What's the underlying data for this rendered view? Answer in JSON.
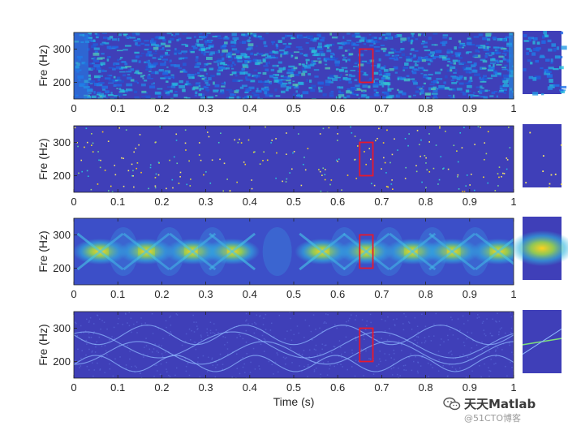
{
  "chart_data": [
    {
      "type": "heatmap",
      "variant": "noisy-spectrogram",
      "xlim": [
        0,
        1
      ],
      "ylim": [
        150,
        350
      ],
      "xticks": [
        "0",
        "0.1",
        "0.2",
        "0.3",
        "0.4",
        "0.5",
        "0.6",
        "0.7",
        "0.8",
        "0.9",
        "1"
      ],
      "yticks": [
        "200",
        "300"
      ],
      "ylabel": "Fre (Hz)",
      "highlight": {
        "x": [
          0.65,
          0.68
        ],
        "y": [
          200,
          300
        ],
        "color": "#e8192c"
      }
    },
    {
      "type": "heatmap",
      "variant": "sparse-points",
      "xlim": [
        0,
        1
      ],
      "ylim": [
        150,
        350
      ],
      "xticks": [
        "0",
        "0.1",
        "0.2",
        "0.3",
        "0.4",
        "0.5",
        "0.6",
        "0.7",
        "0.8",
        "0.9",
        "1"
      ],
      "yticks": [
        "200",
        "300"
      ],
      "ylabel": "Fre (Hz)",
      "highlight": {
        "x": [
          0.65,
          0.68
        ],
        "y": [
          200,
          300
        ],
        "color": "#e8192c"
      }
    },
    {
      "type": "heatmap",
      "variant": "crossing-chirps",
      "xlim": [
        0,
        1
      ],
      "ylim": [
        150,
        350
      ],
      "xticks": [
        "0",
        "0.1",
        "0.2",
        "0.3",
        "0.4",
        "0.5",
        "0.6",
        "0.7",
        "0.8",
        "0.9",
        "1"
      ],
      "yticks": [
        "200",
        "300"
      ],
      "ylabel": "Fre (Hz)",
      "peaks_x": [
        0.06,
        0.165,
        0.27,
        0.36,
        0.565,
        0.665,
        0.77,
        0.86,
        0.965
      ],
      "peak_freq": 250,
      "highlight": {
        "x": [
          0.65,
          0.68
        ],
        "y": [
          200,
          300
        ],
        "color": "#e8192c"
      }
    },
    {
      "type": "heatmap",
      "variant": "ridge-lines",
      "xlim": [
        0,
        1
      ],
      "ylim": [
        150,
        350
      ],
      "xticks": [
        "0",
        "0.1",
        "0.2",
        "0.3",
        "0.4",
        "0.5",
        "0.6",
        "0.7",
        "0.8",
        "0.9",
        "1"
      ],
      "yticks": [
        "200",
        "300"
      ],
      "ylabel": "Fre (Hz)",
      "xlabel": "Time (s)",
      "highlight": {
        "x": [
          0.65,
          0.68
        ],
        "y": [
          200,
          300
        ],
        "color": "#e8192c"
      }
    }
  ],
  "colors": {
    "background": "#3f3fb8",
    "highlight": "#e8192c",
    "axis": "#262626"
  },
  "watermark": {
    "main": "天天Matlab",
    "sub": "@51CTO博客",
    "icon": "wechat-icon"
  }
}
